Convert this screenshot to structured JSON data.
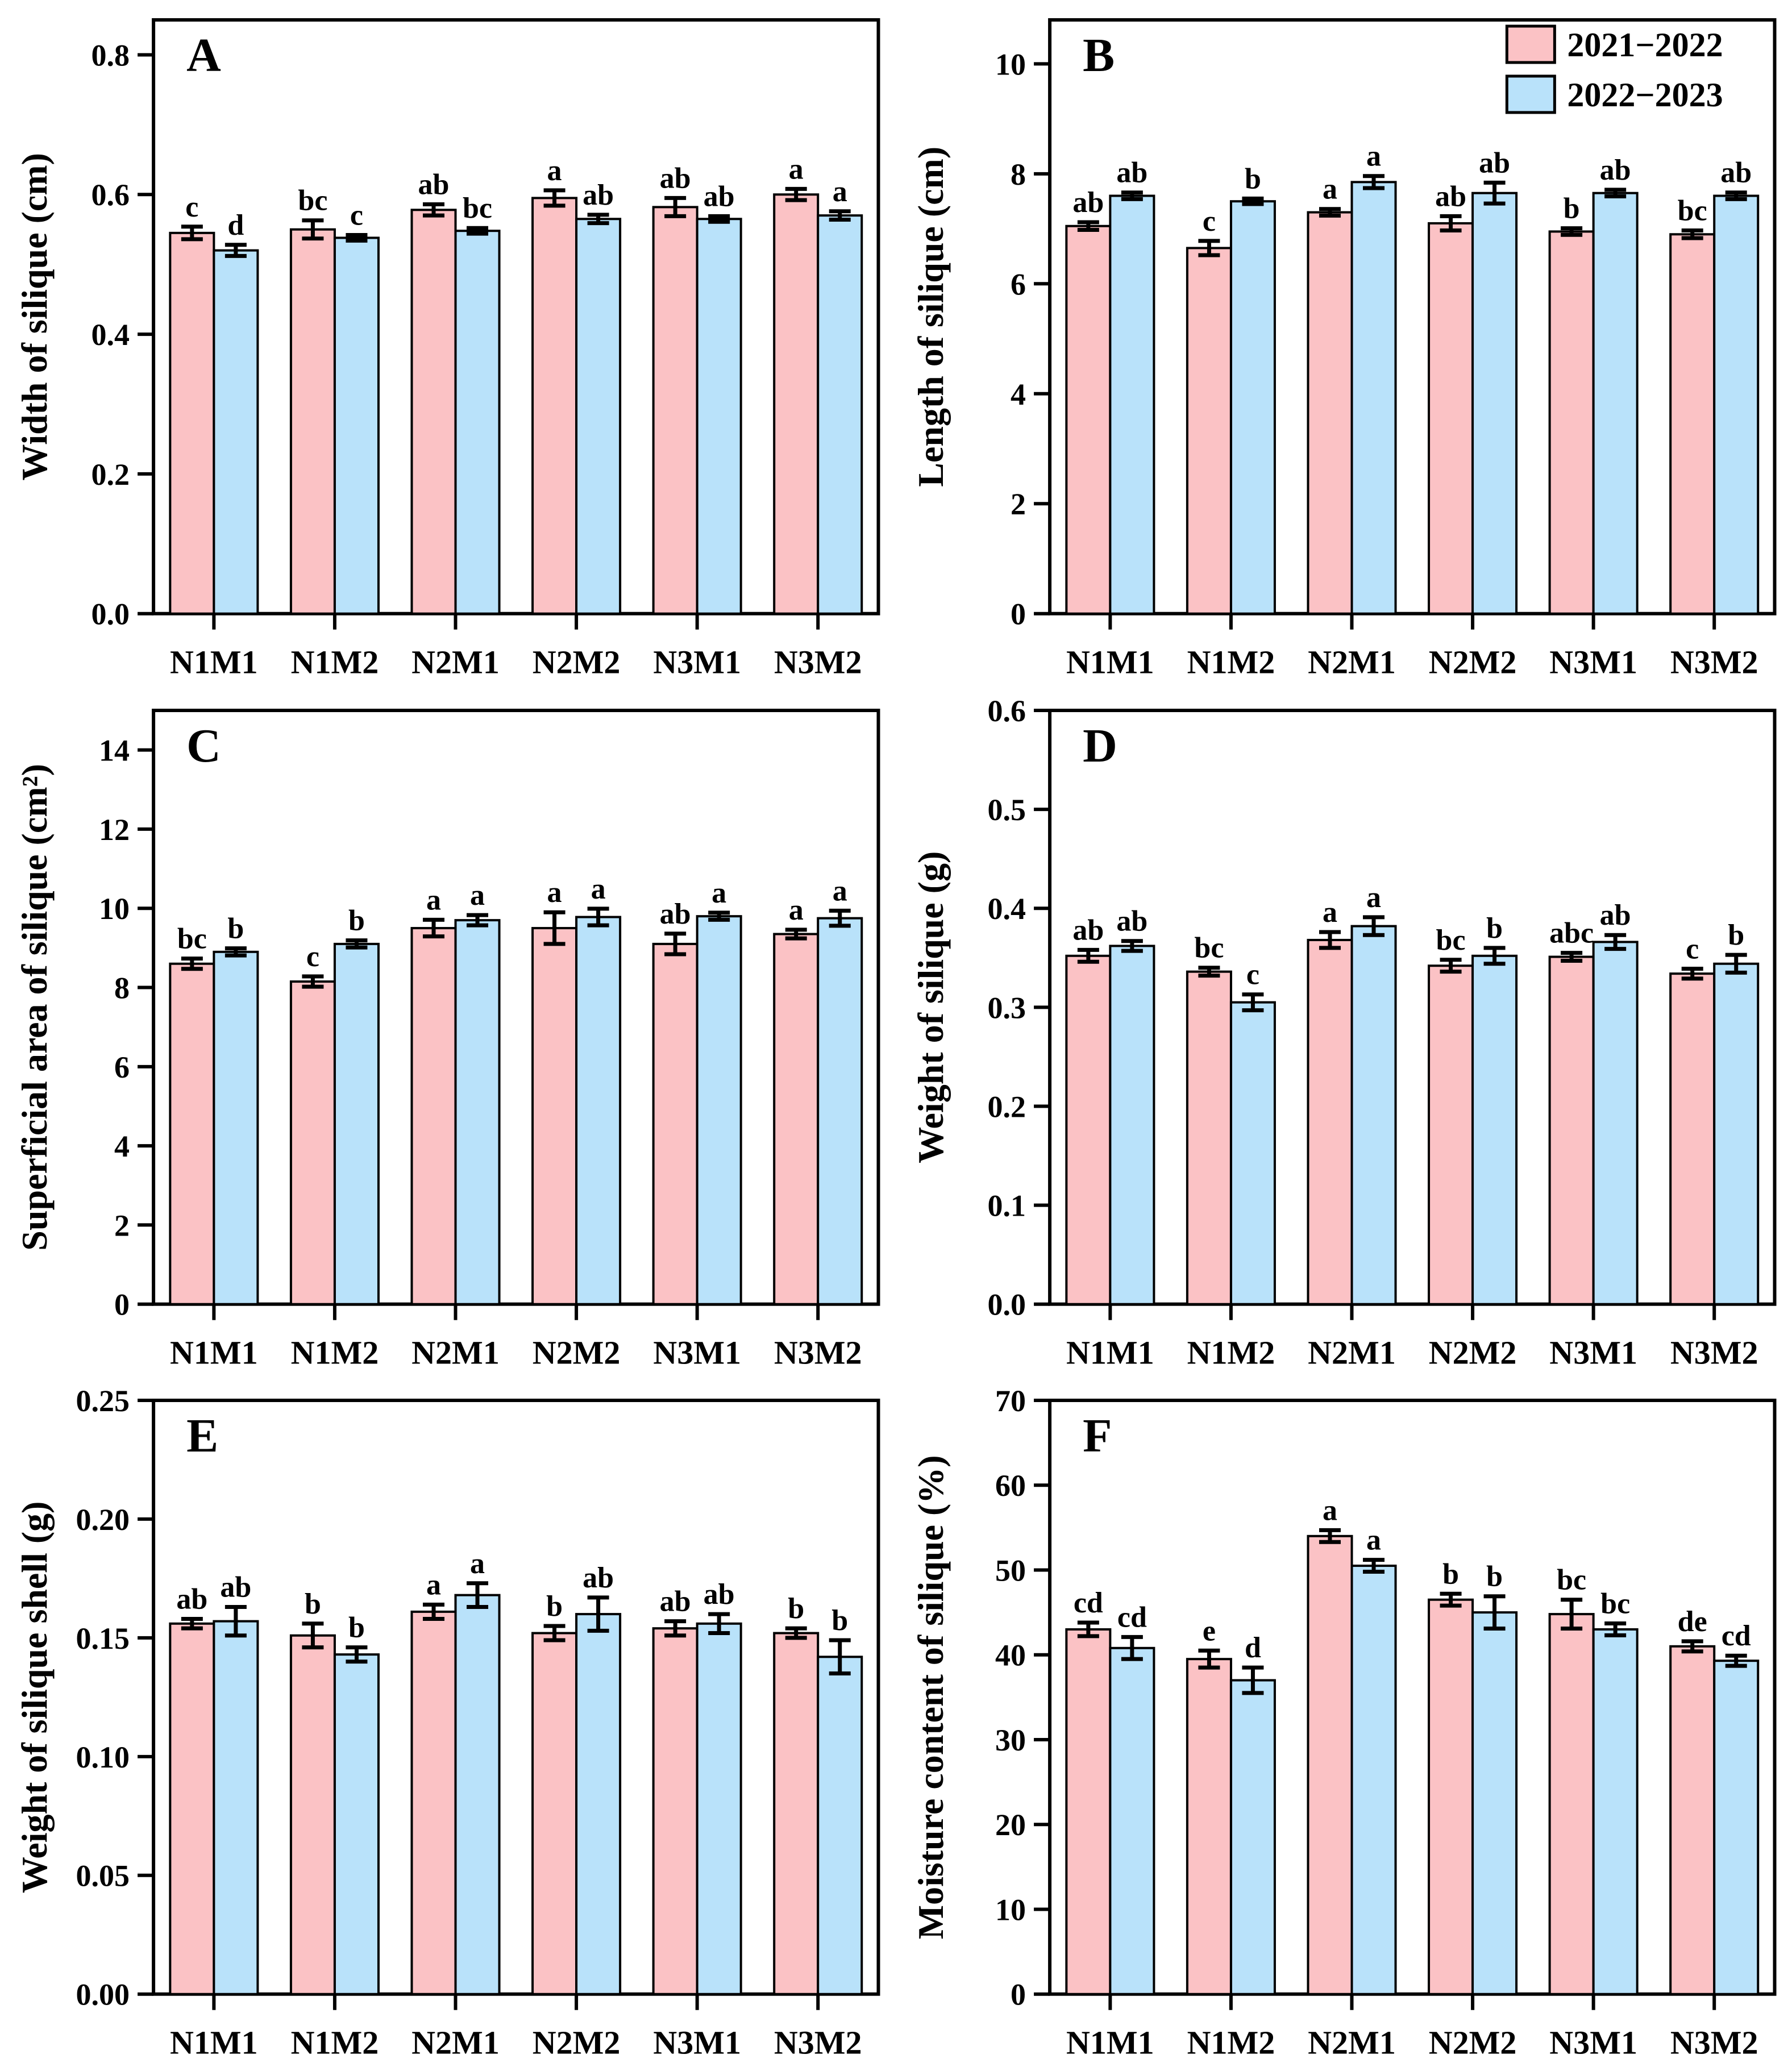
{
  "figure": {
    "background": "#ffffff",
    "series_colors": [
      "#fbc2c5",
      "#b9e2fa"
    ],
    "legend": {
      "items": [
        {
          "label": "2021−2022",
          "color": "#fbc2c5"
        },
        {
          "label": "2022−2023",
          "color": "#b9e2fa"
        }
      ],
      "position": "top-right"
    }
  },
  "chart_data": [
    {
      "type": "bar",
      "panel_label": "A",
      "title": "",
      "xlabel": "",
      "ylabel": "Width of silique (cm)",
      "categories": [
        "N1M1",
        "N1M2",
        "N2M1",
        "N2M2",
        "N3M1",
        "N3M2"
      ],
      "ylim": [
        0,
        0.85
      ],
      "yticks": [
        0.0,
        0.2,
        0.4,
        0.6,
        0.8
      ],
      "ytick_decimals": 1,
      "grid": false,
      "show_legend": false,
      "series": [
        {
          "name": "2021−2022",
          "values": [
            0.545,
            0.55,
            0.578,
            0.595,
            0.582,
            0.6
          ],
          "errors": [
            0.009,
            0.013,
            0.008,
            0.011,
            0.013,
            0.008
          ],
          "letters": [
            "c",
            "bc",
            "ab",
            "a",
            "ab",
            "a"
          ]
        },
        {
          "name": "2022−2023",
          "values": [
            0.52,
            0.538,
            0.548,
            0.565,
            0.565,
            0.57
          ],
          "errors": [
            0.008,
            0.004,
            0.004,
            0.006,
            0.004,
            0.006
          ],
          "letters": [
            "d",
            "c",
            "bc",
            "ab",
            "ab",
            "a"
          ]
        }
      ]
    },
    {
      "type": "bar",
      "panel_label": "B",
      "title": "",
      "xlabel": "",
      "ylabel": "Length of silique (cm)",
      "categories": [
        "N1M1",
        "N1M2",
        "N2M1",
        "N2M2",
        "N3M1",
        "N3M2"
      ],
      "ylim": [
        0,
        10.8
      ],
      "yticks": [
        0,
        2,
        4,
        6,
        8,
        10
      ],
      "ytick_decimals": 0,
      "grid": false,
      "show_legend": true,
      "series": [
        {
          "name": "2021−2022",
          "values": [
            7.05,
            6.65,
            7.3,
            7.1,
            6.95,
            6.9
          ],
          "errors": [
            0.07,
            0.13,
            0.06,
            0.13,
            0.06,
            0.07
          ],
          "letters": [
            "ab",
            "c",
            "a",
            "ab",
            "b",
            "bc"
          ]
        },
        {
          "name": "2022−2023",
          "values": [
            7.6,
            7.5,
            7.85,
            7.65,
            7.65,
            7.6
          ],
          "errors": [
            0.06,
            0.05,
            0.11,
            0.19,
            0.06,
            0.06
          ],
          "letters": [
            "ab",
            "b",
            "a",
            "ab",
            "ab",
            "ab"
          ]
        }
      ]
    },
    {
      "type": "bar",
      "panel_label": "C",
      "title": "",
      "xlabel": "",
      "ylabel": "Superficial area of silique (cm²)",
      "categories": [
        "N1M1",
        "N1M2",
        "N2M1",
        "N2M2",
        "N3M1",
        "N3M2"
      ],
      "ylim": [
        0,
        15
      ],
      "yticks": [
        0,
        2,
        4,
        6,
        8,
        10,
        12,
        14
      ],
      "ytick_decimals": 0,
      "grid": false,
      "show_legend": false,
      "series": [
        {
          "name": "2021−2022",
          "values": [
            8.6,
            8.15,
            9.5,
            9.5,
            9.1,
            9.35
          ],
          "errors": [
            0.13,
            0.13,
            0.21,
            0.4,
            0.26,
            0.11
          ],
          "letters": [
            "bc",
            "c",
            "a",
            "a",
            "ab",
            "a"
          ]
        },
        {
          "name": "2022−2023",
          "values": [
            8.9,
            9.1,
            9.7,
            9.78,
            9.8,
            9.75
          ],
          "errors": [
            0.09,
            0.09,
            0.13,
            0.21,
            0.09,
            0.19
          ],
          "letters": [
            "b",
            "b",
            "a",
            "a",
            "a",
            "a"
          ]
        }
      ]
    },
    {
      "type": "bar",
      "panel_label": "D",
      "title": "",
      "xlabel": "",
      "ylabel": "Weight of silique (g)",
      "categories": [
        "N1M1",
        "N1M2",
        "N2M1",
        "N2M2",
        "N3M1",
        "N3M2"
      ],
      "ylim": [
        0,
        0.6
      ],
      "yticks": [
        0.0,
        0.1,
        0.2,
        0.3,
        0.4,
        0.5,
        0.6
      ],
      "ytick_decimals": 1,
      "grid": false,
      "show_legend": false,
      "series": [
        {
          "name": "2021−2022",
          "values": [
            0.352,
            0.336,
            0.368,
            0.342,
            0.351,
            0.334
          ],
          "errors": [
            0.006,
            0.004,
            0.008,
            0.006,
            0.004,
            0.005
          ],
          "letters": [
            "ab",
            "bc",
            "a",
            "bc",
            "abc",
            "c"
          ]
        },
        {
          "name": "2022−2023",
          "values": [
            0.362,
            0.305,
            0.382,
            0.352,
            0.366,
            0.344
          ],
          "errors": [
            0.005,
            0.008,
            0.009,
            0.008,
            0.007,
            0.009
          ],
          "letters": [
            "ab",
            "c",
            "a",
            "b",
            "ab",
            "b"
          ]
        }
      ]
    },
    {
      "type": "bar",
      "panel_label": "E",
      "title": "",
      "xlabel": "",
      "ylabel": "Weight of silique shell (g)",
      "categories": [
        "N1M1",
        "N1M2",
        "N2M1",
        "N2M2",
        "N3M1",
        "N3M2"
      ],
      "ylim": [
        0,
        0.25
      ],
      "yticks": [
        0.0,
        0.05,
        0.1,
        0.15,
        0.2,
        0.25
      ],
      "ytick_decimals": 2,
      "grid": false,
      "show_legend": false,
      "series": [
        {
          "name": "2021−2022",
          "values": [
            0.156,
            0.151,
            0.161,
            0.152,
            0.154,
            0.152
          ],
          "errors": [
            0.002,
            0.005,
            0.003,
            0.003,
            0.003,
            0.002
          ],
          "letters": [
            "ab",
            "b",
            "a",
            "b",
            "ab",
            "b"
          ]
        },
        {
          "name": "2022−2023",
          "values": [
            0.157,
            0.143,
            0.168,
            0.16,
            0.156,
            0.142
          ],
          "errors": [
            0.006,
            0.003,
            0.005,
            0.007,
            0.004,
            0.007
          ],
          "letters": [
            "ab",
            "b",
            "a",
            "ab",
            "ab",
            "b"
          ]
        }
      ]
    },
    {
      "type": "bar",
      "panel_label": "F",
      "title": "",
      "xlabel": "",
      "ylabel": "Moisture content of silique (%)",
      "categories": [
        "N1M1",
        "N1M2",
        "N2M1",
        "N2M2",
        "N3M1",
        "N3M2"
      ],
      "ylim": [
        0,
        70
      ],
      "yticks": [
        0,
        10,
        20,
        30,
        40,
        50,
        60,
        70
      ],
      "ytick_decimals": 0,
      "grid": false,
      "show_legend": false,
      "series": [
        {
          "name": "2021−2022",
          "values": [
            43.0,
            39.5,
            54.0,
            46.5,
            44.8,
            41.0
          ],
          "errors": [
            0.8,
            1.0,
            0.7,
            0.7,
            1.7,
            0.6
          ],
          "letters": [
            "cd",
            "e",
            "a",
            "b",
            "bc",
            "de"
          ]
        },
        {
          "name": "2022−2023",
          "values": [
            40.8,
            37.0,
            50.5,
            45.0,
            43.0,
            39.3
          ],
          "errors": [
            1.3,
            1.5,
            0.7,
            1.9,
            0.7,
            0.6
          ],
          "letters": [
            "cd",
            "d",
            "a",
            "b",
            "bc",
            "cd"
          ]
        }
      ]
    }
  ]
}
